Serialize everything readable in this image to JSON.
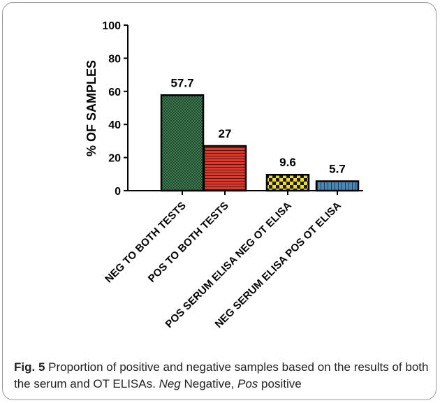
{
  "chart_data": {
    "type": "bar",
    "categories": [
      "NEG TO BOTH TESTS",
      "POS TO BOTH TESTS",
      "POS SERUM ELISA NEG OT ELISA",
      "NEG SERUM ELISA POS OT ELISA"
    ],
    "values": [
      57.7,
      27,
      9.6,
      5.7
    ],
    "data_labels": [
      "57.7",
      "27",
      "9.6",
      "5.7"
    ],
    "ylabel": "% OF SAMPLES",
    "xlabel": "",
    "ylim": [
      0,
      100
    ],
    "yticks": [
      "0",
      "20",
      "40",
      "60",
      "80",
      "100"
    ],
    "bar_colors": [
      "#3f7a52",
      "#d93a2b",
      "#e8d21f",
      "#4a88b8"
    ],
    "grid": false,
    "legend": "none"
  },
  "caption": {
    "label": "Fig. 5",
    "text_1": "  Proportion of positive and negative samples based on the results of both the serum and OT ELISAs. ",
    "neg_abbr": "Neg",
    "neg_text": " Negative, ",
    "pos_abbr": "Pos",
    "pos_text": " positive"
  }
}
